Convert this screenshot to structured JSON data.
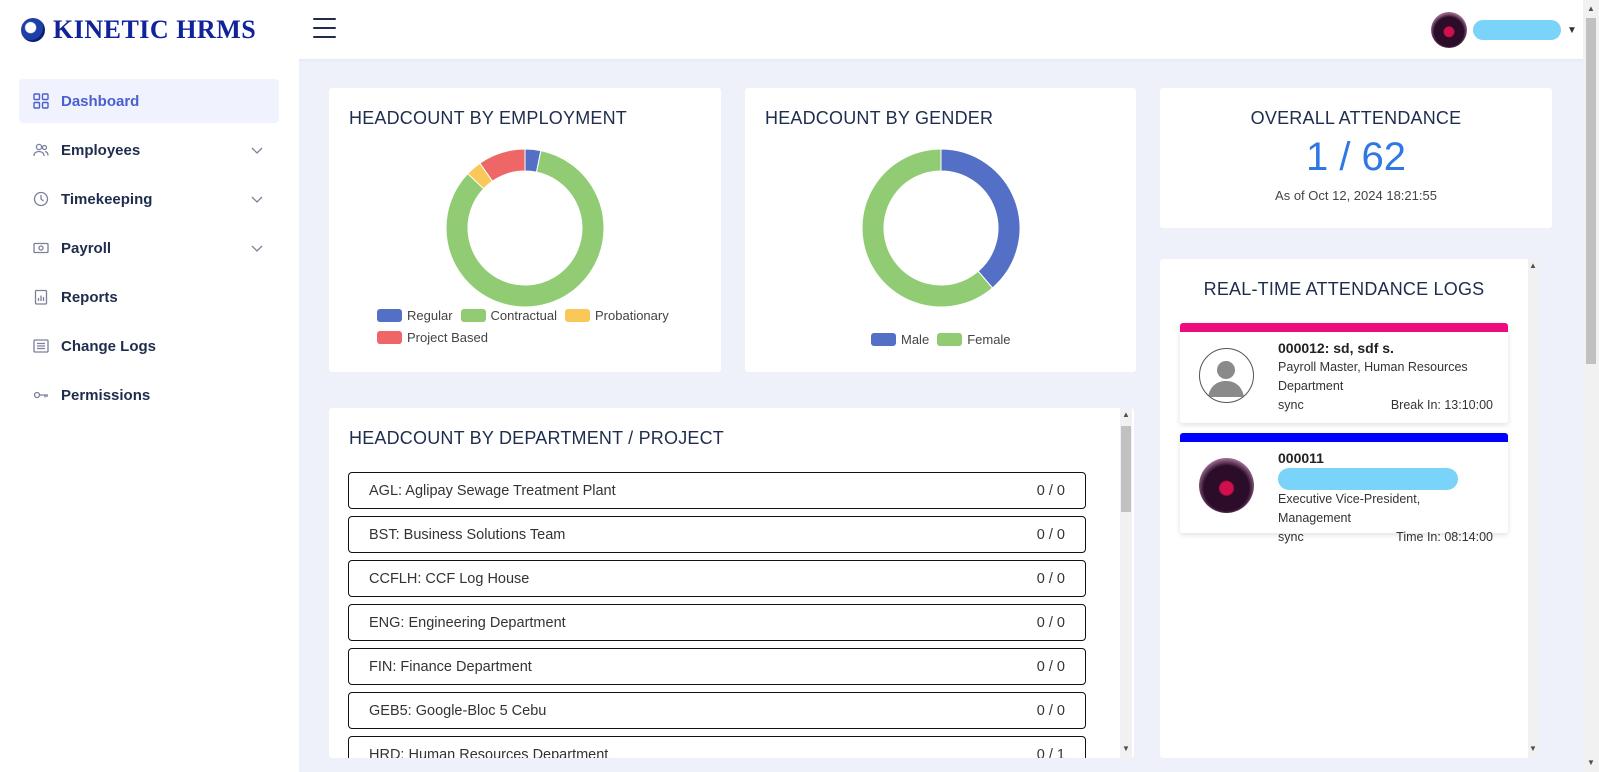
{
  "app": {
    "title": "KINETIC HRMS"
  },
  "header": {
    "user_menu_caret": "▼"
  },
  "sidebar": {
    "items": [
      {
        "label": "Dashboard",
        "icon": "grid-icon",
        "active": true
      },
      {
        "label": "Employees",
        "icon": "users-icon",
        "has_submenu": true
      },
      {
        "label": "Timekeeping",
        "icon": "clock-icon",
        "has_submenu": true
      },
      {
        "label": "Payroll",
        "icon": "money-icon",
        "has_submenu": true
      },
      {
        "label": "Reports",
        "icon": "report-icon"
      },
      {
        "label": "Change Logs",
        "icon": "list-icon"
      },
      {
        "label": "Permissions",
        "icon": "key-icon"
      }
    ]
  },
  "employment_card": {
    "title": "HEADCOUNT BY EMPLOYMENT",
    "chart_data": {
      "type": "pie",
      "donut": true,
      "categories": [
        "Regular",
        "Contractual",
        "Probationary",
        "Project Based"
      ],
      "values": [
        2,
        52,
        2,
        6
      ],
      "colors": [
        "#5470c6",
        "#91cc75",
        "#fac858",
        "#ee6666"
      ]
    }
  },
  "gender_card": {
    "title": "HEADCOUNT BY GENDER",
    "chart_data": {
      "type": "pie",
      "donut": true,
      "categories": [
        "Male",
        "Female"
      ],
      "values": [
        24,
        38
      ],
      "colors": [
        "#5470c6",
        "#91cc75"
      ]
    }
  },
  "attendance_card": {
    "title": "OVERALL ATTENDANCE",
    "value": "1 / 62",
    "as_of": "As of Oct 12, 2024 18:21:55"
  },
  "department_card": {
    "title": "HEADCOUNT BY DEPARTMENT / PROJECT",
    "rows": [
      {
        "name": "AGL: Aglipay Sewage Treatment Plant",
        "count": "0 / 0"
      },
      {
        "name": "BST: Business Solutions Team",
        "count": "0 / 0"
      },
      {
        "name": "CCFLH: CCF Log House",
        "count": "0 / 0"
      },
      {
        "name": "ENG: Engineering Department",
        "count": "0 / 0"
      },
      {
        "name": "FIN: Finance Department",
        "count": "0 / 0"
      },
      {
        "name": "GEB5: Google-Bloc 5 Cebu",
        "count": "0 / 0"
      },
      {
        "name": "HRD: Human Resources Department",
        "count": "0 / 1"
      }
    ]
  },
  "logs_card": {
    "title": "REAL-TIME ATTENDANCE LOGS",
    "logs": [
      {
        "id_name": "000012: sd, sdf s.",
        "position": "Payroll Master, Human Resources Department",
        "source": "sync",
        "event": "Break In: 13:10:00",
        "bar_color": "#ec0c7e",
        "avatar": "default-person-avatar"
      },
      {
        "id_name": "000011",
        "position": "Executive Vice-President, Management",
        "source": "sync",
        "event": "Time In: 08:14:00",
        "bar_color": "#0000ff",
        "avatar": "user-photo-avatar"
      }
    ]
  }
}
